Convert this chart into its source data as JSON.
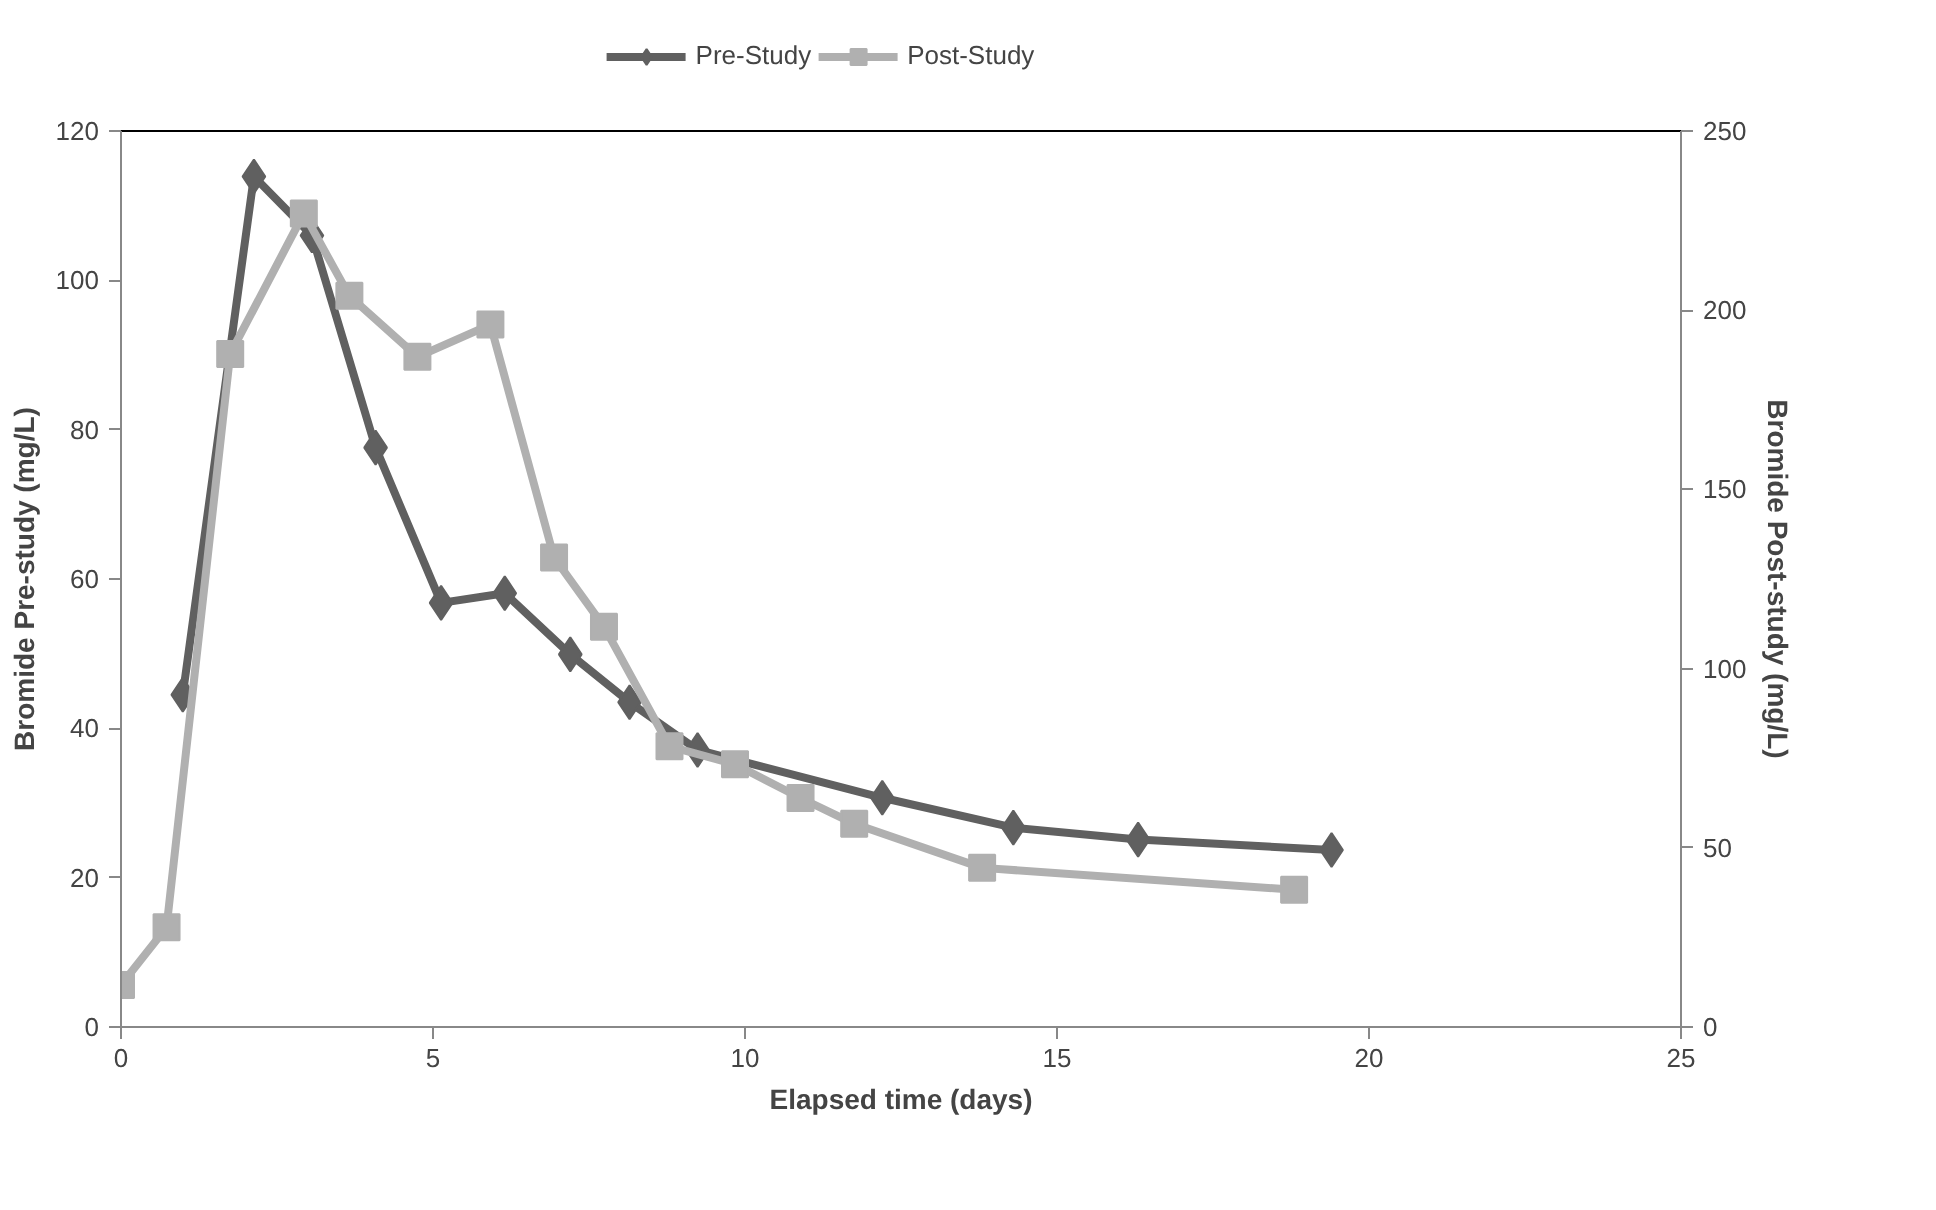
{
  "chart_data": {
    "type": "line",
    "xlabel": "Elapsed time (days)",
    "ylabel": "Bromide Pre-study (mg/L)",
    "y2label": "Bromide Post-study (mg/L)",
    "xlim": [
      0,
      25
    ],
    "xticks": [
      0,
      5,
      10,
      15,
      20,
      25
    ],
    "ylim": [
      0,
      120
    ],
    "yticks": [
      0,
      20,
      40,
      60,
      80,
      100,
      120
    ],
    "y2lim": [
      0,
      250
    ],
    "y2ticks": [
      0,
      50,
      100,
      150,
      200,
      250
    ],
    "grid": false,
    "legend": "top",
    "line_style": "solid",
    "series": [
      {
        "name": "Pre-Study",
        "color": "#606060",
        "marker": "diamond",
        "x": [
          0.99,
          2.13,
          3.06,
          4.08,
          5.13,
          6.15,
          7.2,
          8.15,
          9.24,
          12.2,
          14.3,
          16.3,
          19.4
        ],
        "values": [
          44.5,
          113.9,
          106,
          77.6,
          56.8,
          58.1,
          49.9,
          43.5,
          37.1,
          30.7,
          26.7,
          25.1,
          23.7
        ]
      },
      {
        "name": "Post-Study",
        "color": "#b0b0b0",
        "marker": "square",
        "axis": "y2",
        "x": [
          0,
          0.73,
          1.75,
          2.93,
          3.66,
          4.75,
          5.92,
          6.94,
          7.74,
          8.79,
          9.84,
          10.89,
          11.75,
          13.8,
          18.8
        ],
        "values": [
          11.7,
          27.8,
          187.8,
          227,
          204,
          187,
          196,
          131,
          111.7,
          78.3,
          73.3,
          63.9,
          56.7,
          44.4,
          38.3
        ]
      }
    ]
  }
}
